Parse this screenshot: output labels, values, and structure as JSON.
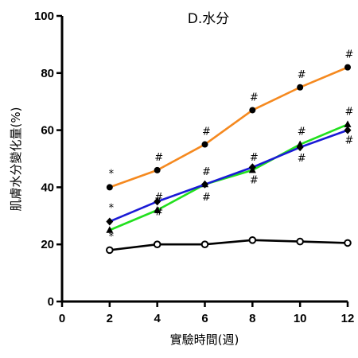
{
  "chart_data": {
    "type": "line",
    "title": "D.水分",
    "xlabel": "實驗時間(週)",
    "ylabel": "肌膚水分變化量(%)",
    "xlim": [
      0,
      12
    ],
    "ylim": [
      0,
      100
    ],
    "xticks": [
      0,
      2,
      4,
      6,
      8,
      10,
      12
    ],
    "yticks": [
      0,
      20,
      40,
      60,
      80,
      100
    ],
    "grid": false,
    "x": [
      2,
      4,
      6,
      8,
      10,
      12
    ],
    "series": [
      {
        "values": [
          40,
          46,
          55,
          67,
          75,
          82
        ],
        "color": "#f5891f",
        "marker": "circle-filled",
        "annotations": [
          "*",
          "#",
          "#",
          "#",
          "#",
          "#"
        ]
      },
      {
        "values": [
          25,
          32,
          41,
          46,
          55,
          62
        ],
        "color": "#22e01e",
        "marker": "triangle",
        "annotations": [
          "",
          "#",
          "#",
          "#",
          "#",
          "#"
        ]
      },
      {
        "values": [
          28,
          35,
          41,
          47,
          54,
          60
        ],
        "color": "#1a1ad6",
        "marker": "diamond",
        "annotations": [
          "*",
          "#",
          "#",
          "#",
          "#",
          "#"
        ]
      },
      {
        "values": [
          18,
          20,
          20,
          21.5,
          21,
          20.5
        ],
        "color": "#000000",
        "marker": "circle-open",
        "annotations": [
          "*",
          "",
          "",
          "",
          "",
          ""
        ]
      }
    ]
  }
}
